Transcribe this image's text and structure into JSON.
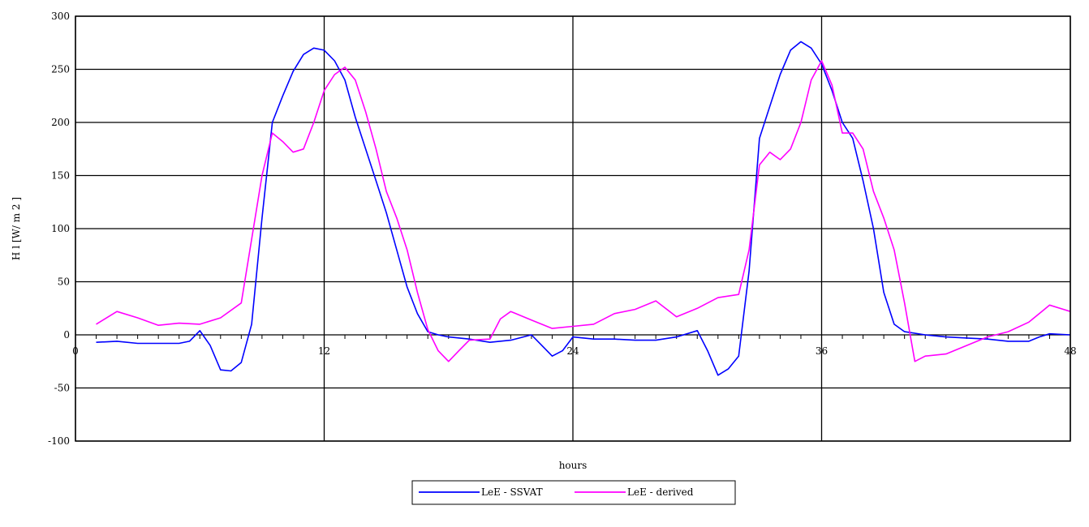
{
  "chart_data": {
    "type": "line",
    "title": "",
    "xlabel": "hours",
    "ylabel": "H l [W/ m 2 ]",
    "xlim": [
      0,
      48
    ],
    "ylim": [
      -100,
      300
    ],
    "x_ticks": [
      0,
      12,
      24,
      36,
      48
    ],
    "x_tick_labels": [
      "0",
      "12",
      "24",
      "36",
      "48"
    ],
    "y_ticks": [
      -100,
      -50,
      0,
      50,
      100,
      150,
      200,
      250,
      300
    ],
    "y_tick_labels": [
      "-100",
      "-50",
      "0",
      "50",
      "100",
      "150",
      "200",
      "250",
      "300"
    ],
    "grid": true,
    "legend_position": "bottom-center",
    "series": [
      {
        "name": "LeE - SSVAT",
        "color": "#0000ff",
        "points": [
          [
            1,
            -7
          ],
          [
            2,
            -6
          ],
          [
            3,
            -8
          ],
          [
            4,
            -8
          ],
          [
            5,
            -8
          ],
          [
            5.5,
            -6
          ],
          [
            6,
            4
          ],
          [
            6.5,
            -10
          ],
          [
            7,
            -33
          ],
          [
            7.5,
            -34
          ],
          [
            8,
            -26
          ],
          [
            8.5,
            10
          ],
          [
            9,
            110
          ],
          [
            9.5,
            200
          ],
          [
            10,
            225
          ],
          [
            10.5,
            248
          ],
          [
            11,
            264
          ],
          [
            11.5,
            270
          ],
          [
            12,
            268
          ],
          [
            12.5,
            258
          ],
          [
            13,
            240
          ],
          [
            13.5,
            205
          ],
          [
            14,
            175
          ],
          [
            14.5,
            145
          ],
          [
            15,
            115
          ],
          [
            15.5,
            80
          ],
          [
            16,
            45
          ],
          [
            16.5,
            20
          ],
          [
            17,
            3
          ],
          [
            17.5,
            0
          ],
          [
            18,
            -2
          ],
          [
            19,
            -4
          ],
          [
            20,
            -7
          ],
          [
            21,
            -5
          ],
          [
            22,
            0
          ],
          [
            22.5,
            -10
          ],
          [
            23,
            -20
          ],
          [
            23.5,
            -15
          ],
          [
            24,
            -2
          ],
          [
            25,
            -4
          ],
          [
            26,
            -4
          ],
          [
            27,
            -5
          ],
          [
            28,
            -5
          ],
          [
            29,
            -2
          ],
          [
            30,
            4
          ],
          [
            30.5,
            -15
          ],
          [
            31,
            -38
          ],
          [
            31.5,
            -32
          ],
          [
            32,
            -20
          ],
          [
            32.5,
            60
          ],
          [
            33,
            185
          ],
          [
            33.5,
            215
          ],
          [
            34,
            245
          ],
          [
            34.5,
            268
          ],
          [
            35,
            276
          ],
          [
            35.5,
            270
          ],
          [
            36,
            255
          ],
          [
            36.5,
            230
          ],
          [
            37,
            200
          ],
          [
            37.5,
            185
          ],
          [
            38,
            145
          ],
          [
            38.5,
            100
          ],
          [
            39,
            40
          ],
          [
            39.5,
            10
          ],
          [
            40,
            3
          ],
          [
            41,
            0
          ],
          [
            42,
            -2
          ],
          [
            43,
            -3
          ],
          [
            44,
            -4
          ],
          [
            45,
            -6
          ],
          [
            46,
            -6
          ],
          [
            46.5,
            -2
          ],
          [
            47,
            1
          ],
          [
            48,
            0
          ]
        ]
      },
      {
        "name": "LeE - derived",
        "color": "#ff00ff",
        "points": [
          [
            1,
            10
          ],
          [
            2,
            22
          ],
          [
            3,
            16
          ],
          [
            4,
            9
          ],
          [
            5,
            11
          ],
          [
            6,
            10
          ],
          [
            7,
            16
          ],
          [
            8,
            30
          ],
          [
            8.5,
            90
          ],
          [
            9,
            150
          ],
          [
            9.5,
            190
          ],
          [
            10,
            182
          ],
          [
            10.5,
            172
          ],
          [
            11,
            175
          ],
          [
            11.5,
            200
          ],
          [
            12,
            230
          ],
          [
            12.5,
            245
          ],
          [
            13,
            252
          ],
          [
            13.5,
            240
          ],
          [
            14,
            210
          ],
          [
            14.5,
            175
          ],
          [
            15,
            135
          ],
          [
            15.5,
            110
          ],
          [
            16,
            80
          ],
          [
            16.5,
            40
          ],
          [
            17,
            5
          ],
          [
            17.5,
            -15
          ],
          [
            18,
            -25
          ],
          [
            18.5,
            -15
          ],
          [
            19,
            -5
          ],
          [
            20,
            -4
          ],
          [
            20.5,
            15
          ],
          [
            21,
            22
          ],
          [
            22,
            14
          ],
          [
            23,
            6
          ],
          [
            24,
            8
          ],
          [
            25,
            10
          ],
          [
            26,
            20
          ],
          [
            27,
            24
          ],
          [
            28,
            32
          ],
          [
            29,
            17
          ],
          [
            30,
            25
          ],
          [
            31,
            35
          ],
          [
            32,
            38
          ],
          [
            32.5,
            80
          ],
          [
            33,
            160
          ],
          [
            33.5,
            172
          ],
          [
            34,
            165
          ],
          [
            34.5,
            175
          ],
          [
            35,
            200
          ],
          [
            35.5,
            240
          ],
          [
            36,
            258
          ],
          [
            36.5,
            235
          ],
          [
            37,
            190
          ],
          [
            37.5,
            190
          ],
          [
            38,
            175
          ],
          [
            38.5,
            135
          ],
          [
            39,
            110
          ],
          [
            39.5,
            80
          ],
          [
            40,
            30
          ],
          [
            40.5,
            -25
          ],
          [
            41,
            -20
          ],
          [
            42,
            -18
          ],
          [
            43,
            -10
          ],
          [
            44,
            -2
          ],
          [
            45,
            3
          ],
          [
            46,
            12
          ],
          [
            47,
            28
          ],
          [
            48,
            22
          ]
        ]
      }
    ]
  }
}
